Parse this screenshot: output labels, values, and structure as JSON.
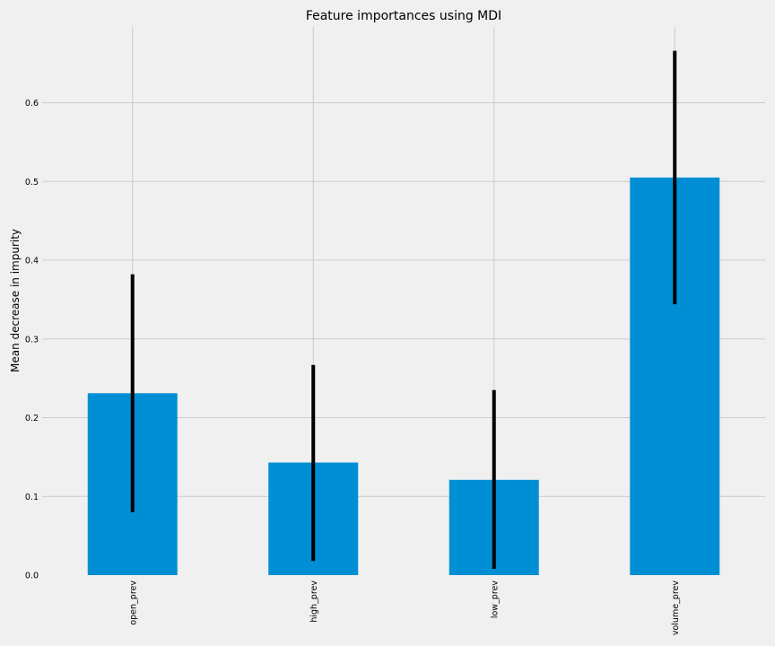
{
  "chart_data": {
    "type": "bar",
    "title": "Feature importances using MDI",
    "xlabel": "",
    "ylabel": "Mean decrease in impurity",
    "categories": [
      "open_prev",
      "high_prev",
      "low_prev",
      "volume_prev"
    ],
    "values": [
      0.231,
      0.143,
      0.121,
      0.505
    ],
    "error_low": [
      0.08,
      0.018,
      0.008,
      0.344
    ],
    "error_high": [
      0.382,
      0.267,
      0.235,
      0.666
    ],
    "yticks": [
      0.0,
      0.1,
      0.2,
      0.3,
      0.4,
      0.5,
      0.6
    ],
    "ylim": [
      0,
      0.695
    ],
    "grid": true,
    "colors": {
      "bar": "#008fd5",
      "errorbar": "#000000",
      "background": "#f0f0f0",
      "grid": "#cbcbcb"
    }
  }
}
